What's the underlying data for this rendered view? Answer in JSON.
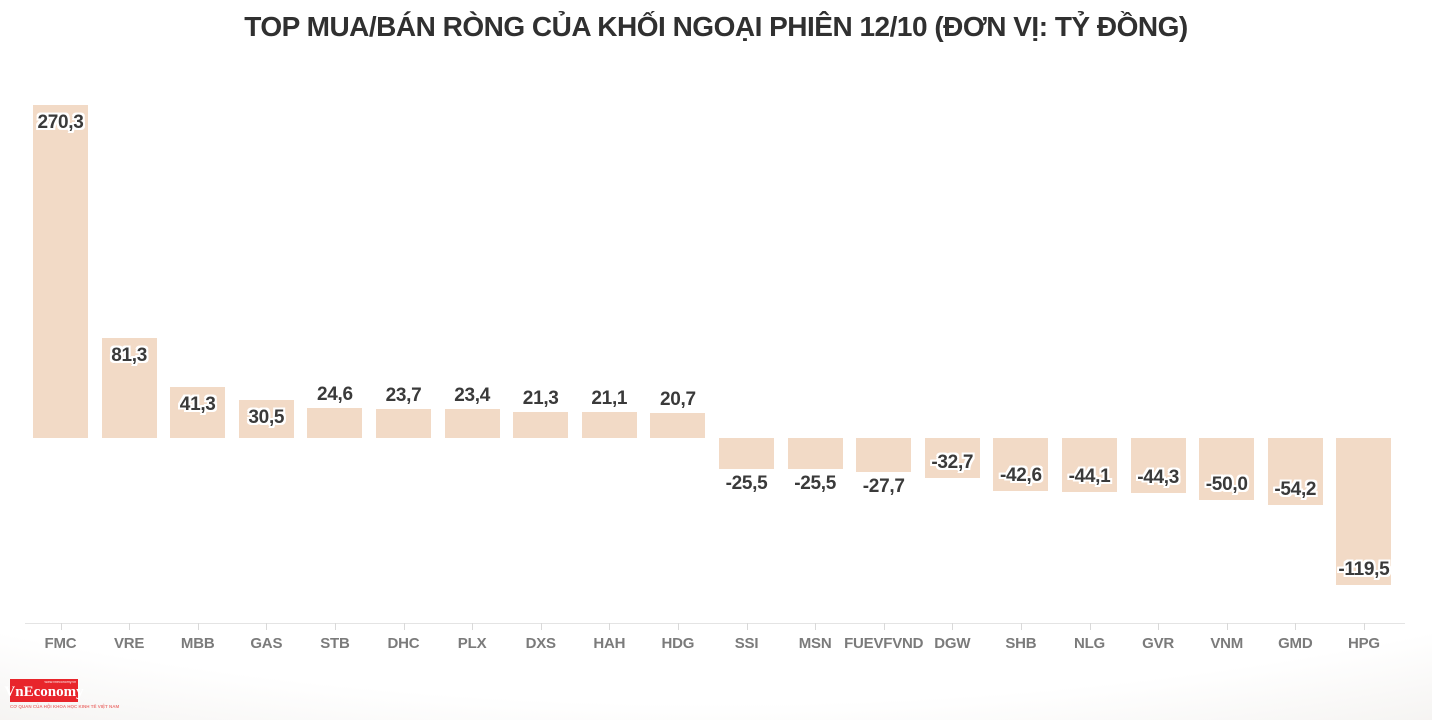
{
  "title": "TOP MUA/BÁN RÒNG CỦA KHỐI NGOẠI PHIÊN 12/10 (ĐƠN VỊ: TỶ ĐỒNG)",
  "chart_data": {
    "type": "bar",
    "orientation": "vertical",
    "title": "TOP MUA/BÁN RÒNG CỦA KHỐI NGOẠI PHIÊN 12/10 (ĐƠN VỊ: TỶ ĐỒNG)",
    "unit": "tỷ đồng",
    "categories": [
      "FMC",
      "VRE",
      "MBB",
      "GAS",
      "STB",
      "DHC",
      "PLX",
      "DXS",
      "HAH",
      "HDG",
      "SSI",
      "MSN",
      "FUEVFVND",
      "DGW",
      "SHB",
      "NLG",
      "GVR",
      "VNM",
      "GMD",
      "HPG"
    ],
    "values": [
      270.3,
      81.3,
      41.3,
      30.5,
      24.6,
      23.7,
      23.4,
      21.3,
      21.1,
      20.7,
      -25.5,
      -25.5,
      -27.7,
      -32.7,
      -42.6,
      -44.1,
      -44.3,
      -50.0,
      -54.2,
      -119.5
    ],
    "value_labels": [
      "270,3",
      "81,3",
      "41,3",
      "30,5",
      "24,6",
      "23,7",
      "23,4",
      "21,3",
      "21,1",
      "20,7",
      "-25,5",
      "-25,5",
      "-27,7",
      "-32,7",
      "-42,6",
      "-44,1",
      "-44,3",
      "-50,0",
      "-54,2",
      "-119,5"
    ],
    "ylim": [
      -130,
      280
    ],
    "baseline": 0,
    "grid": false,
    "legend_position": "none",
    "colors": {
      "bar": "#f2dac6",
      "value_label": "#3a3a3a",
      "value_label_halo": "#ffffff",
      "category_label": "#7b7b7b",
      "axis_line": "#e4e4e4",
      "axis_tick": "#d9d9d9",
      "title": "#303030"
    }
  },
  "branding": {
    "logo_text": "VnEconomy",
    "logo_top_text": "www.vneconomy.vn",
    "tagline": "CƠ QUAN CỦA HỘI KHOA HỌC KINH TẾ VIỆT NAM",
    "logo_bg_color": "#e8252b",
    "tagline_color": "#e8504e"
  }
}
